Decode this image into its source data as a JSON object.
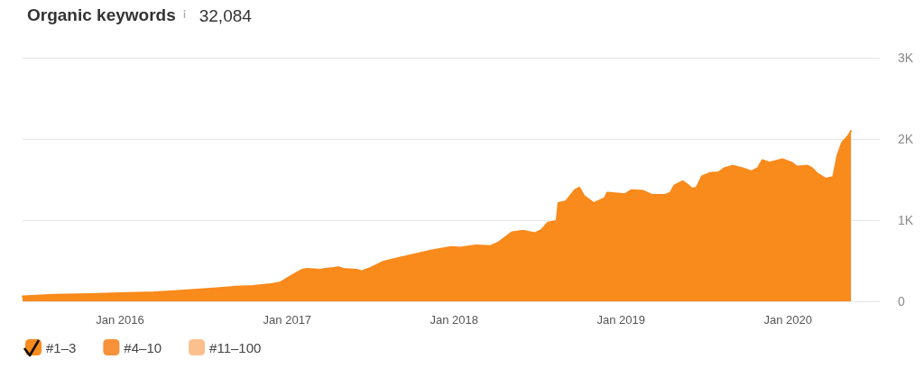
{
  "chart_data": {
    "type": "area",
    "title": "Organic keywords",
    "subtitle": "32,084",
    "x": [
      "2015-06-02",
      "2015-08-09",
      "2015-10-28",
      "2016-01-01",
      "2016-03-15",
      "2016-04-13",
      "2016-05-13",
      "2016-07-31",
      "2016-09-09",
      "2016-10-18",
      "2016-11-26",
      "2016-12-16",
      "2017-01-05",
      "2017-01-24",
      "2017-02-03",
      "2017-02-13",
      "2017-03-15",
      "2017-03-25",
      "2017-04-13",
      "2017-04-23",
      "2017-05-03",
      "2017-06-02",
      "2017-06-12",
      "2017-07-01",
      "2017-07-31",
      "2017-08-30",
      "2017-10-08",
      "2017-11-16",
      "2017-12-26",
      "2018-01-14",
      "2018-02-17",
      "2018-03-20",
      "2018-04-09",
      "2018-05-07",
      "2018-06-01",
      "2018-06-27",
      "2018-07-11",
      "2018-07-25",
      "2018-08-13",
      "2018-08-17",
      "2018-09-02",
      "2018-09-22",
      "2018-10-02",
      "2018-10-12",
      "2018-11-02",
      "2018-11-26",
      "2018-12-02",
      "2019-01-10",
      "2019-01-24",
      "2019-02-19",
      "2019-03-10",
      "2019-04-07",
      "2019-04-19",
      "2019-04-28",
      "2019-05-16",
      "2019-05-28",
      "2019-06-05",
      "2019-06-15",
      "2019-06-27",
      "2019-07-14",
      "2019-08-03",
      "2019-08-15",
      "2019-09-02",
      "2019-09-24",
      "2019-10-13",
      "2019-10-27",
      "2019-11-06",
      "2019-11-22",
      "2019-12-20",
      "2020-01-09",
      "2020-01-20",
      "2020-02-13",
      "2020-02-23",
      "2020-03-04",
      "2020-03-24",
      "2020-04-09",
      "2020-04-18",
      "2020-04-28",
      "2020-05-12",
      "2020-05-18"
    ],
    "series": [
      {
        "name": "#1–3",
        "color": "#f98a1c",
        "values": [
          60,
          80,
          90,
          100,
          110,
          120,
          130,
          160,
          180,
          190,
          210,
          230,
          300,
          360,
          390,
          400,
          390,
          400,
          410,
          420,
          400,
          390,
          370,
          410,
          490,
          530,
          580,
          630,
          670,
          660,
          690,
          680,
          730,
          850,
          870,
          840,
          880,
          970,
          990,
          1210,
          1230,
          1370,
          1400,
          1300,
          1210,
          1270,
          1340,
          1320,
          1370,
          1360,
          1310,
          1310,
          1340,
          1430,
          1480,
          1430,
          1390,
          1400,
          1540,
          1580,
          1590,
          1640,
          1670,
          1640,
          1600,
          1640,
          1740,
          1710,
          1750,
          1710,
          1660,
          1670,
          1640,
          1580,
          1510,
          1530,
          1790,
          1950,
          2040,
          2100
        ]
      },
      {
        "name": "#4–10",
        "color": "#f7913a",
        "values": [
          null,
          null,
          null,
          null,
          null,
          null,
          null,
          null,
          null,
          null,
          null,
          null,
          null,
          null,
          null,
          null,
          null,
          null,
          null,
          null,
          null,
          null,
          null,
          null,
          null,
          null,
          null,
          null,
          null,
          null,
          null,
          null,
          null,
          null,
          null,
          null,
          null,
          null,
          null,
          null,
          null,
          null,
          null,
          null,
          null,
          null,
          null,
          null,
          null,
          null,
          null,
          null,
          null,
          null,
          null,
          null,
          null,
          null,
          null,
          null,
          null,
          null,
          null,
          null,
          null,
          null,
          null,
          null,
          null,
          null,
          null,
          null,
          null,
          null,
          null,
          null,
          null,
          null,
          null,
          null
        ]
      },
      {
        "name": "#11–100",
        "color": "#fcc08e",
        "values": [
          null,
          null,
          null,
          null,
          null,
          null,
          null,
          null,
          null,
          null,
          null,
          null,
          null,
          null,
          null,
          null,
          null,
          null,
          null,
          null,
          null,
          null,
          null,
          null,
          null,
          null,
          null,
          null,
          null,
          null,
          null,
          null,
          null,
          null,
          null,
          null,
          null,
          null,
          null,
          null,
          null,
          null,
          null,
          null,
          null,
          null,
          null,
          null,
          null,
          null,
          null,
          null,
          null,
          null,
          null,
          null,
          null,
          null,
          null,
          null,
          null,
          null,
          null,
          null,
          null,
          null,
          null,
          null,
          null,
          null,
          null,
          null,
          null,
          null,
          null,
          null,
          null,
          null,
          null,
          null
        ]
      }
    ],
    "xlim": [
      "2015-06-02",
      "2020-07-20"
    ],
    "xticks": [
      {
        "value": "2016-01-01",
        "label": "Jan 2016"
      },
      {
        "value": "2017-01-01",
        "label": "Jan 2017"
      },
      {
        "value": "2018-01-01",
        "label": "Jan 2018"
      },
      {
        "value": "2019-01-01",
        "label": "Jan 2019"
      },
      {
        "value": "2020-01-01",
        "label": "Jan 2020"
      }
    ],
    "ylim": [
      0,
      3000
    ],
    "yticks": [
      0,
      {
        "value": 1000,
        "label": "1K"
      },
      {
        "value": 2000,
        "label": "2K"
      },
      {
        "value": 3000,
        "label": "3K"
      }
    ],
    "grid": "y",
    "legend": "bottom left",
    "marker": "none",
    "line_style": "solid"
  }
}
